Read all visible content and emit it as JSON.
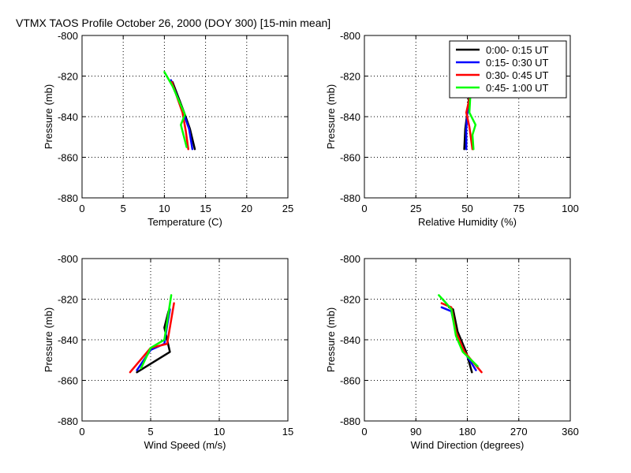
{
  "figure_title": "VTMX TAOS Profile   October 26, 2000 (DOY 300) [15-min mean]",
  "legend": {
    "entries": [
      {
        "label": "0:00- 0:15 UT",
        "color": "#000000"
      },
      {
        "label": "0:15- 0:30 UT",
        "color": "#0000ff"
      },
      {
        "label": "0:30- 0:45 UT",
        "color": "#ff0000"
      },
      {
        "label": "0:45- 1:00 UT",
        "color": "#00ff00"
      }
    ]
  },
  "chart_data": [
    {
      "type": "line",
      "xlabel": "Temperature (C)",
      "ylabel": "Pressure (mb)",
      "xlim": [
        0,
        25
      ],
      "ylim": [
        -880,
        -800
      ],
      "xticks": [
        "0",
        "5",
        "10",
        "15",
        "20",
        "25"
      ],
      "yticks": [
        "-800",
        "-820",
        "-840",
        "-860",
        "-880"
      ],
      "grid": true,
      "series": [
        {
          "name": "0:00- 0:15 UT",
          "color": "#000000",
          "x": [
            13.7,
            13.1,
            12.4,
            11.0
          ],
          "y": [
            -856,
            -846,
            -838,
            -823
          ]
        },
        {
          "name": "0:15- 0:30 UT",
          "color": "#0000ff",
          "x": [
            13.4,
            13.0,
            12.3,
            10.8
          ],
          "y": [
            -856,
            -846,
            -838,
            -822
          ]
        },
        {
          "name": "0:30- 0:45 UT",
          "color": "#ff0000",
          "x": [
            12.9,
            12.6,
            12.2,
            10.9
          ],
          "y": [
            -856,
            -847,
            -838,
            -823
          ]
        },
        {
          "name": "0:45- 1:00 UT",
          "color": "#00ff00",
          "x": [
            12.7,
            12.0,
            12.5,
            11.0,
            10.0
          ],
          "y": [
            -855,
            -844,
            -839,
            -825,
            -818
          ]
        }
      ]
    },
    {
      "type": "line",
      "xlabel": "Relative Humidity (%)",
      "ylabel": "Pressure (mb)",
      "xlim": [
        0,
        100
      ],
      "ylim": [
        -880,
        -800
      ],
      "xticks": [
        "0",
        "25",
        "50",
        "75",
        "100"
      ],
      "yticks": [
        "-800",
        "-820",
        "-840",
        "-860",
        "-880"
      ],
      "grid": true,
      "series": [
        {
          "name": "0:00- 0:15 UT",
          "color": "#000000",
          "x": [
            48.5,
            49.0,
            50.0,
            51.0
          ],
          "y": [
            -856,
            -846,
            -838,
            -829
          ]
        },
        {
          "name": "0:15- 0:30 UT",
          "color": "#0000ff",
          "x": [
            49.5,
            49.5,
            50.0,
            51.5
          ],
          "y": [
            -856,
            -846,
            -838,
            -829
          ]
        },
        {
          "name": "0:30- 0:45 UT",
          "color": "#ff0000",
          "x": [
            52.5,
            51.0,
            49.5,
            51.5
          ],
          "y": [
            -856,
            -845,
            -838,
            -829
          ]
        },
        {
          "name": "0:45- 1:00 UT",
          "color": "#00ff00",
          "x": [
            53.0,
            52.5,
            54.0,
            51.0,
            51.5
          ],
          "y": [
            -856,
            -849,
            -844,
            -838,
            -829
          ]
        }
      ]
    },
    {
      "type": "line",
      "xlabel": "Wind Speed (m/s)",
      "ylabel": "Pressure (mb)",
      "xlim": [
        0,
        15
      ],
      "ylim": [
        -880,
        -800
      ],
      "xticks": [
        "0",
        "5",
        "10",
        "15"
      ],
      "yticks": [
        "-800",
        "-820",
        "-840",
        "-860",
        "-880"
      ],
      "grid": true,
      "series": [
        {
          "name": "0:00- 0:15 UT",
          "color": "#000000",
          "x": [
            4.0,
            6.4,
            6.0,
            6.3
          ],
          "y": [
            -856,
            -846,
            -834,
            -826
          ]
        },
        {
          "name": "0:15- 0:30 UT",
          "color": "#0000ff",
          "x": [
            4.0,
            5.0,
            6.0,
            6.2,
            6.4
          ],
          "y": [
            -855,
            -845,
            -842,
            -833,
            -825
          ]
        },
        {
          "name": "0:30- 0:45 UT",
          "color": "#ff0000",
          "x": [
            3.5,
            5.0,
            6.2,
            6.7
          ],
          "y": [
            -856,
            -844,
            -842,
            -822
          ]
        },
        {
          "name": "0:45- 1:00 UT",
          "color": "#00ff00",
          "x": [
            4.3,
            5.0,
            6.0,
            6.5
          ],
          "y": [
            -854,
            -844,
            -840,
            -818
          ]
        }
      ]
    },
    {
      "type": "line",
      "xlabel": "Wind Direction (degrees)",
      "ylabel": "Pressure (mb)",
      "xlim": [
        0,
        360
      ],
      "ylim": [
        -880,
        -800
      ],
      "xticks": [
        "0",
        "90",
        "180",
        "270",
        "360"
      ],
      "yticks": [
        "-800",
        "-820",
        "-840",
        "-860",
        "-880"
      ],
      "grid": true,
      "series": [
        {
          "name": "0:00- 0:15 UT",
          "color": "#000000",
          "x": [
            188,
            178,
            163,
            155,
            148
          ],
          "y": [
            -856,
            -846,
            -836,
            -825,
            -824
          ]
        },
        {
          "name": "0:15- 0:30 UT",
          "color": "#0000ff",
          "x": [
            195,
            175,
            160,
            152,
            135
          ],
          "y": [
            -855,
            -846,
            -836,
            -826,
            -824
          ]
        },
        {
          "name": "0:30- 0:45 UT",
          "color": "#ff0000",
          "x": [
            205,
            175,
            160,
            152,
            135
          ],
          "y": [
            -856,
            -846,
            -836,
            -824,
            -822
          ]
        },
        {
          "name": "0:45- 1:00 UT",
          "color": "#00ff00",
          "x": [
            198,
            172,
            160,
            152,
            143,
            130
          ],
          "y": [
            -853,
            -846,
            -838,
            -825,
            -822,
            -818
          ]
        }
      ]
    }
  ]
}
